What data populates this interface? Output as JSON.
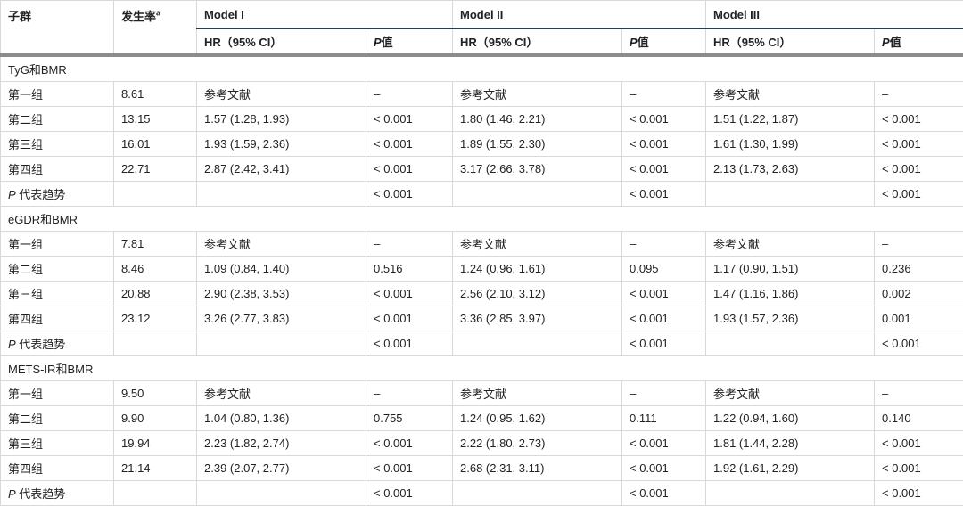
{
  "header": {
    "subgroup": "子群",
    "incidence": "发生率",
    "incidence_sup": "a",
    "models": [
      "Model I",
      "Model II",
      "Model III"
    ],
    "hr_label": "HR（95% CI）",
    "p_italic": "P",
    "p_suffix": "值"
  },
  "sections": [
    {
      "title": "TyG和BMR",
      "rows": [
        [
          "第一组",
          "8.61",
          "参考文献",
          "–",
          "参考文献",
          "–",
          "参考文献",
          "–"
        ],
        [
          "第二组",
          "13.15",
          "1.57 (1.28, 1.93)",
          "< 0.001",
          "1.80 (1.46, 2.21)",
          "< 0.001",
          "1.51 (1.22, 1.87)",
          "< 0.001"
        ],
        [
          "第三组",
          "16.01",
          "1.93 (1.59, 2.36)",
          "< 0.001",
          "1.89 (1.55, 2.30)",
          "< 0.001",
          "1.61 (1.30, 1.99)",
          "< 0.001"
        ],
        [
          "第四组",
          "22.71",
          "2.87 (2.42, 3.41)",
          "< 0.001",
          "3.17 (2.66, 3.78)",
          "< 0.001",
          "2.13 (1.73, 2.63)",
          "< 0.001"
        ],
        [
          "P 代表趋势",
          "",
          "",
          "< 0.001",
          "",
          "< 0.001",
          "",
          "< 0.001"
        ]
      ]
    },
    {
      "title": "eGDR和BMR",
      "rows": [
        [
          "第一组",
          "7.81",
          "参考文献",
          "–",
          "参考文献",
          "–",
          "参考文献",
          "–"
        ],
        [
          "第二组",
          "8.46",
          "1.09 (0.84, 1.40)",
          "0.516",
          "1.24 (0.96, 1.61)",
          "0.095",
          "1.17 (0.90, 1.51)",
          "0.236"
        ],
        [
          "第三组",
          "20.88",
          "2.90 (2.38, 3.53)",
          "< 0.001",
          "2.56 (2.10, 3.12)",
          "< 0.001",
          "1.47 (1.16, 1.86)",
          "0.002"
        ],
        [
          "第四组",
          "23.12",
          "3.26 (2.77, 3.83)",
          "< 0.001",
          "3.36 (2.85, 3.97)",
          "< 0.001",
          "1.93 (1.57, 2.36)",
          "0.001"
        ],
        [
          "P 代表趋势",
          "",
          "",
          "< 0.001",
          "",
          "< 0.001",
          "",
          "< 0.001"
        ]
      ]
    },
    {
      "title": "METS-IR和BMR",
      "rows": [
        [
          "第一组",
          "9.50",
          "参考文献",
          "–",
          "参考文献",
          "–",
          "参考文献",
          "–"
        ],
        [
          "第二组",
          "9.90",
          "1.04 (0.80, 1.36)",
          "0.755",
          "1.24 (0.95, 1.62)",
          "0.111",
          "1.22 (0.94, 1.60)",
          "0.140"
        ],
        [
          "第三组",
          "19.94",
          "2.23 (1.82, 2.74)",
          "< 0.001",
          "2.22 (1.80, 2.73)",
          "< 0.001",
          "1.81 (1.44, 2.28)",
          "< 0.001"
        ],
        [
          "第四组",
          "21.14",
          "2.39 (2.07, 2.77)",
          "< 0.001",
          "2.68 (2.31, 3.11)",
          "< 0.001",
          "1.92 (1.61, 2.29)",
          "< 0.001"
        ],
        [
          "P 代表趋势",
          "",
          "",
          "< 0.001",
          "",
          "< 0.001",
          "",
          "< 0.001"
        ]
      ]
    }
  ]
}
